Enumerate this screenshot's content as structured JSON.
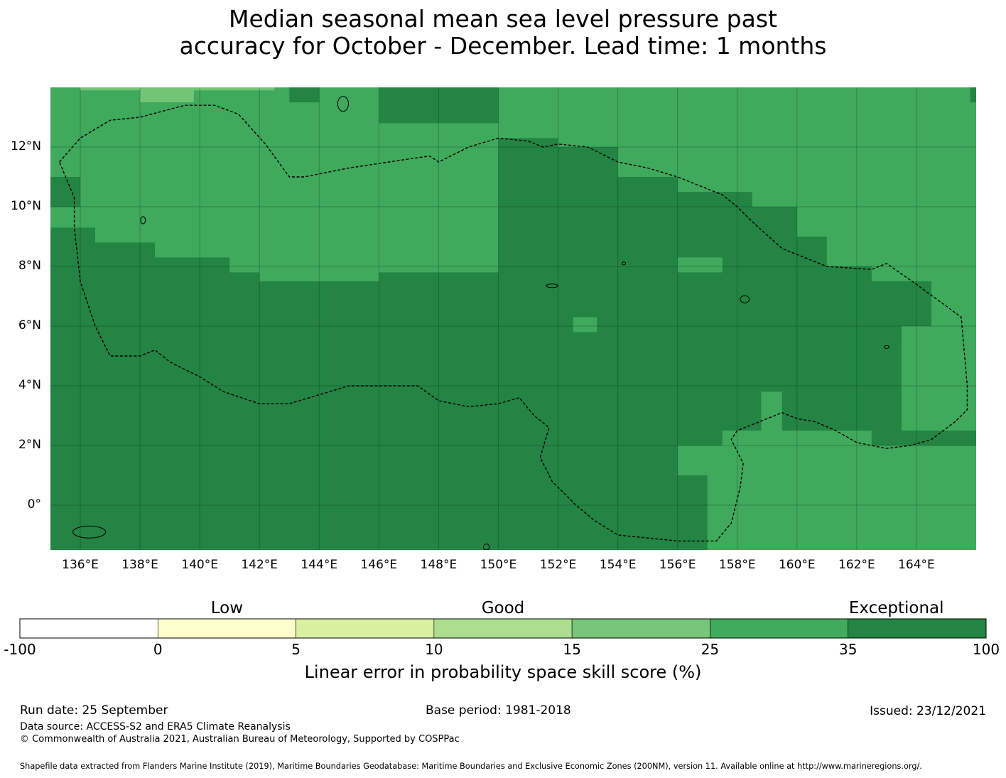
{
  "title": {
    "line1": "Median seasonal mean sea level pressure past",
    "line2": "accuracy for October - December. Lead time: 1 months"
  },
  "map": {
    "lon_range": [
      135,
      166
    ],
    "lat_range": [
      -1.5,
      14
    ],
    "lon_ticks": [
      {
        "value": 136,
        "label": "136°E"
      },
      {
        "value": 138,
        "label": "138°E"
      },
      {
        "value": 140,
        "label": "140°E"
      },
      {
        "value": 142,
        "label": "142°E"
      },
      {
        "value": 144,
        "label": "144°E"
      },
      {
        "value": 146,
        "label": "146°E"
      },
      {
        "value": 148,
        "label": "148°E"
      },
      {
        "value": 150,
        "label": "150°E"
      },
      {
        "value": 152,
        "label": "152°E"
      },
      {
        "value": 154,
        "label": "154°E"
      },
      {
        "value": 156,
        "label": "156°E"
      },
      {
        "value": 158,
        "label": "158°E"
      },
      {
        "value": 160,
        "label": "160°E"
      },
      {
        "value": 162,
        "label": "162°E"
      },
      {
        "value": 164,
        "label": "164°E"
      }
    ],
    "lat_ticks": [
      {
        "value": 12,
        "label": "12°N"
      },
      {
        "value": 10,
        "label": "10°N"
      },
      {
        "value": 8,
        "label": "8°N"
      },
      {
        "value": 6,
        "label": "6°N"
      },
      {
        "value": 4,
        "label": "4°N"
      },
      {
        "value": 2,
        "label": "2°N"
      },
      {
        "value": 0,
        "label": "0°"
      }
    ],
    "base_color": "#3fa95c",
    "regions": [
      {
        "category": "exceptional",
        "color": "#238443",
        "polygon": [
          [
            135,
            -1.5
          ],
          [
            166,
            -1.5
          ],
          [
            166,
            4
          ],
          [
            163.5,
            4
          ],
          [
            163.5,
            6
          ],
          [
            164.5,
            6
          ],
          [
            164.5,
            7.5
          ],
          [
            162.5,
            7.5
          ],
          [
            162.5,
            8
          ],
          [
            161,
            8
          ],
          [
            161,
            9
          ],
          [
            160,
            9
          ],
          [
            160,
            10
          ],
          [
            158.5,
            10
          ],
          [
            158.5,
            10.5
          ],
          [
            156,
            10.5
          ],
          [
            156,
            11
          ],
          [
            154,
            11
          ],
          [
            154,
            12
          ],
          [
            152,
            12
          ],
          [
            152,
            12.3
          ],
          [
            150,
            12.3
          ],
          [
            150,
            7.8
          ],
          [
            146,
            7.8
          ],
          [
            146,
            7.5
          ],
          [
            142,
            7.5
          ],
          [
            142,
            7.8
          ],
          [
            141,
            7.8
          ],
          [
            141,
            8.3
          ],
          [
            138.5,
            8.3
          ],
          [
            138.5,
            8.8
          ],
          [
            136.5,
            8.8
          ],
          [
            136.5,
            9.3
          ],
          [
            135,
            9.3
          ]
        ]
      },
      {
        "category": "very good",
        "color": "#3fa95c",
        "polygon": [
          [
            157,
            -1.5
          ],
          [
            166,
            -1.5
          ],
          [
            166,
            2
          ],
          [
            162.5,
            2
          ],
          [
            162.5,
            2.5
          ],
          [
            159.5,
            2.5
          ],
          [
            159.5,
            3.8
          ],
          [
            158.8,
            3.8
          ],
          [
            158.8,
            2.5
          ],
          [
            157.5,
            2.5
          ],
          [
            157.5,
            2
          ],
          [
            156,
            2
          ],
          [
            156,
            1
          ],
          [
            157,
            1
          ]
        ]
      },
      {
        "category": "very good",
        "color": "#3fa95c",
        "polygon": [
          [
            163.5,
            2.5
          ],
          [
            166,
            2.5
          ],
          [
            166,
            7.5
          ],
          [
            165.5,
            7.5
          ],
          [
            165.5,
            5.5
          ],
          [
            163.5,
            5.5
          ]
        ]
      },
      {
        "category": "very good",
        "color": "#3fa95c",
        "polygon": [
          [
            152.5,
            5.8
          ],
          [
            153.3,
            5.8
          ],
          [
            153.3,
            6.3
          ],
          [
            152.5,
            6.3
          ]
        ]
      },
      {
        "category": "very good",
        "color": "#3fa95c",
        "polygon": [
          [
            156,
            7.8
          ],
          [
            157.5,
            7.8
          ],
          [
            157.5,
            8.3
          ],
          [
            156,
            8.3
          ]
        ]
      },
      {
        "category": "very good",
        "color": "#3fa95c",
        "polygon": [
          [
            143,
            7.5
          ],
          [
            145,
            7.5
          ],
          [
            145,
            8
          ],
          [
            143,
            8
          ]
        ]
      },
      {
        "category": "exceptional",
        "color": "#238443",
        "polygon": [
          [
            143,
            13.5
          ],
          [
            144,
            13.5
          ],
          [
            144,
            14
          ],
          [
            143,
            14
          ]
        ]
      },
      {
        "category": "exceptional",
        "color": "#238443",
        "polygon": [
          [
            146,
            12.8
          ],
          [
            150,
            12.8
          ],
          [
            150,
            14
          ],
          [
            146,
            14
          ]
        ]
      },
      {
        "category": "exceptional",
        "color": "#238443",
        "polygon": [
          [
            135,
            10
          ],
          [
            136,
            10
          ],
          [
            136,
            11
          ],
          [
            135,
            11
          ]
        ]
      },
      {
        "category": "exceptional",
        "color": "#238443",
        "polygon": [
          [
            165.8,
            13.5
          ],
          [
            166,
            13.5
          ],
          [
            166,
            14
          ],
          [
            165.8,
            14
          ]
        ]
      },
      {
        "category": "good",
        "color": "#74c476",
        "polygon": [
          [
            138,
            13.5
          ],
          [
            139.8,
            13.5
          ],
          [
            139.8,
            14
          ],
          [
            138,
            14
          ]
        ]
      },
      {
        "category": "good",
        "color": "#74c476",
        "polygon": [
          [
            136,
            13.9
          ],
          [
            142.5,
            13.9
          ],
          [
            142.5,
            14
          ],
          [
            136,
            14
          ]
        ]
      }
    ],
    "boundary": [
      [
        135.3,
        11.5
      ],
      [
        136,
        12.3
      ],
      [
        137,
        12.9
      ],
      [
        138,
        13
      ],
      [
        139.5,
        13.4
      ],
      [
        140.5,
        13.4
      ],
      [
        141.3,
        13.1
      ],
      [
        142.2,
        12.1
      ],
      [
        143,
        11
      ],
      [
        143.5,
        11
      ],
      [
        145,
        11.3
      ],
      [
        147,
        11.6
      ],
      [
        147.7,
        11.7
      ],
      [
        148,
        11.5
      ],
      [
        149,
        12
      ],
      [
        150,
        12.3
      ],
      [
        151,
        12.2
      ],
      [
        151.5,
        12
      ],
      [
        152,
        12.1
      ],
      [
        153,
        12
      ],
      [
        154,
        11.5
      ],
      [
        155,
        11.3
      ],
      [
        156,
        11
      ],
      [
        157,
        10.6
      ],
      [
        157.5,
        10.4
      ],
      [
        158,
        10
      ],
      [
        158.5,
        9.5
      ],
      [
        159.5,
        8.6
      ],
      [
        161,
        8
      ],
      [
        162.5,
        7.9
      ],
      [
        163,
        8.1
      ],
      [
        164,
        7.4
      ],
      [
        165.5,
        6.3
      ],
      [
        165.7,
        4
      ],
      [
        165.7,
        3.2
      ],
      [
        165.3,
        2.8
      ],
      [
        164.5,
        2.2
      ],
      [
        163.8,
        2
      ],
      [
        163,
        1.9
      ],
      [
        162,
        2.1
      ],
      [
        161.3,
        2.5
      ],
      [
        160.6,
        2.8
      ],
      [
        160,
        2.9
      ],
      [
        159.5,
        3.1
      ],
      [
        158.5,
        2.7
      ],
      [
        158,
        2.5
      ],
      [
        157.8,
        2.2
      ],
      [
        158.2,
        1.4
      ],
      [
        158.1,
        0.6
      ],
      [
        157.8,
        -0.6
      ],
      [
        157.3,
        -1.2
      ],
      [
        156,
        -1.2
      ],
      [
        154,
        -1
      ],
      [
        153.2,
        -0.5
      ],
      [
        152.6,
        0
      ],
      [
        151.8,
        0.8
      ],
      [
        151.4,
        1.6
      ],
      [
        151.7,
        2.6
      ],
      [
        151.2,
        3
      ],
      [
        150.7,
        3.6
      ],
      [
        150,
        3.4
      ],
      [
        149,
        3.3
      ],
      [
        148,
        3.5
      ],
      [
        147.3,
        4
      ],
      [
        146,
        4
      ],
      [
        145,
        4
      ],
      [
        144,
        3.7
      ],
      [
        143,
        3.4
      ],
      [
        142,
        3.4
      ],
      [
        140.8,
        3.8
      ],
      [
        140,
        4.3
      ],
      [
        139,
        4.8
      ],
      [
        138.5,
        5.2
      ],
      [
        138,
        5
      ],
      [
        137,
        5
      ],
      [
        136.5,
        6
      ],
      [
        136,
        7.5
      ],
      [
        135.8,
        9.3
      ],
      [
        135.8,
        10.3
      ],
      [
        135.3,
        11.5
      ]
    ],
    "islands": [
      {
        "lon": 144.8,
        "lat": 13.45,
        "rx": 0.18,
        "ry": 0.25
      },
      {
        "lon": 138.1,
        "lat": 9.55,
        "rx": 0.08,
        "ry": 0.12
      },
      {
        "lon": 158.25,
        "lat": 6.9,
        "rx": 0.15,
        "ry": 0.12
      },
      {
        "lon": 163,
        "lat": 5.3,
        "rx": 0.08,
        "ry": 0.05
      },
      {
        "lon": 151.8,
        "lat": 7.35,
        "rx": 0.2,
        "ry": 0.06
      },
      {
        "lon": 154.2,
        "lat": 8.1,
        "rx": 0.06,
        "ry": 0.05
      },
      {
        "lon": 136.3,
        "lat": -0.9,
        "rx": 0.55,
        "ry": 0.2
      },
      {
        "lon": 149.6,
        "lat": -1.4,
        "rx": 0.1,
        "ry": 0.1
      }
    ]
  },
  "colorbar": {
    "categories": [
      {
        "label": "Low",
        "pos": 1.5
      },
      {
        "label": "Good",
        "pos": 3.5
      },
      {
        "label": "Exceptional",
        "pos": 6.35
      }
    ],
    "colors": [
      "#ffffff",
      "#ffffcc",
      "#d9f0a3",
      "#addd8e",
      "#78c679",
      "#41ab5d",
      "#238443"
    ],
    "ticks": [
      "-100",
      "0",
      "5",
      "10",
      "15",
      "25",
      "35",
      "100"
    ],
    "title": "Linear error in probability space skill score (%)"
  },
  "footer": {
    "run_date": "Run date: 25 September",
    "base_period": "Base period: 1981-2018",
    "issued": "Issued: 23/12/2021",
    "data_source": "Data source: ACCESS-S2 and ERA5 Climate Reanalysis",
    "copyright": "© Commonwealth of Australia 2021, Australian Bureau of Meteorology, Supported by COSPPac",
    "shapefile": "Shapefile data extracted from Flanders Marine Institute (2019), Maritime Boundaries Geodatabase: Maritime Boundaries and Exclusive Economic Zones (200NM), version 11. Available online at http://www.marineregions.org/."
  }
}
